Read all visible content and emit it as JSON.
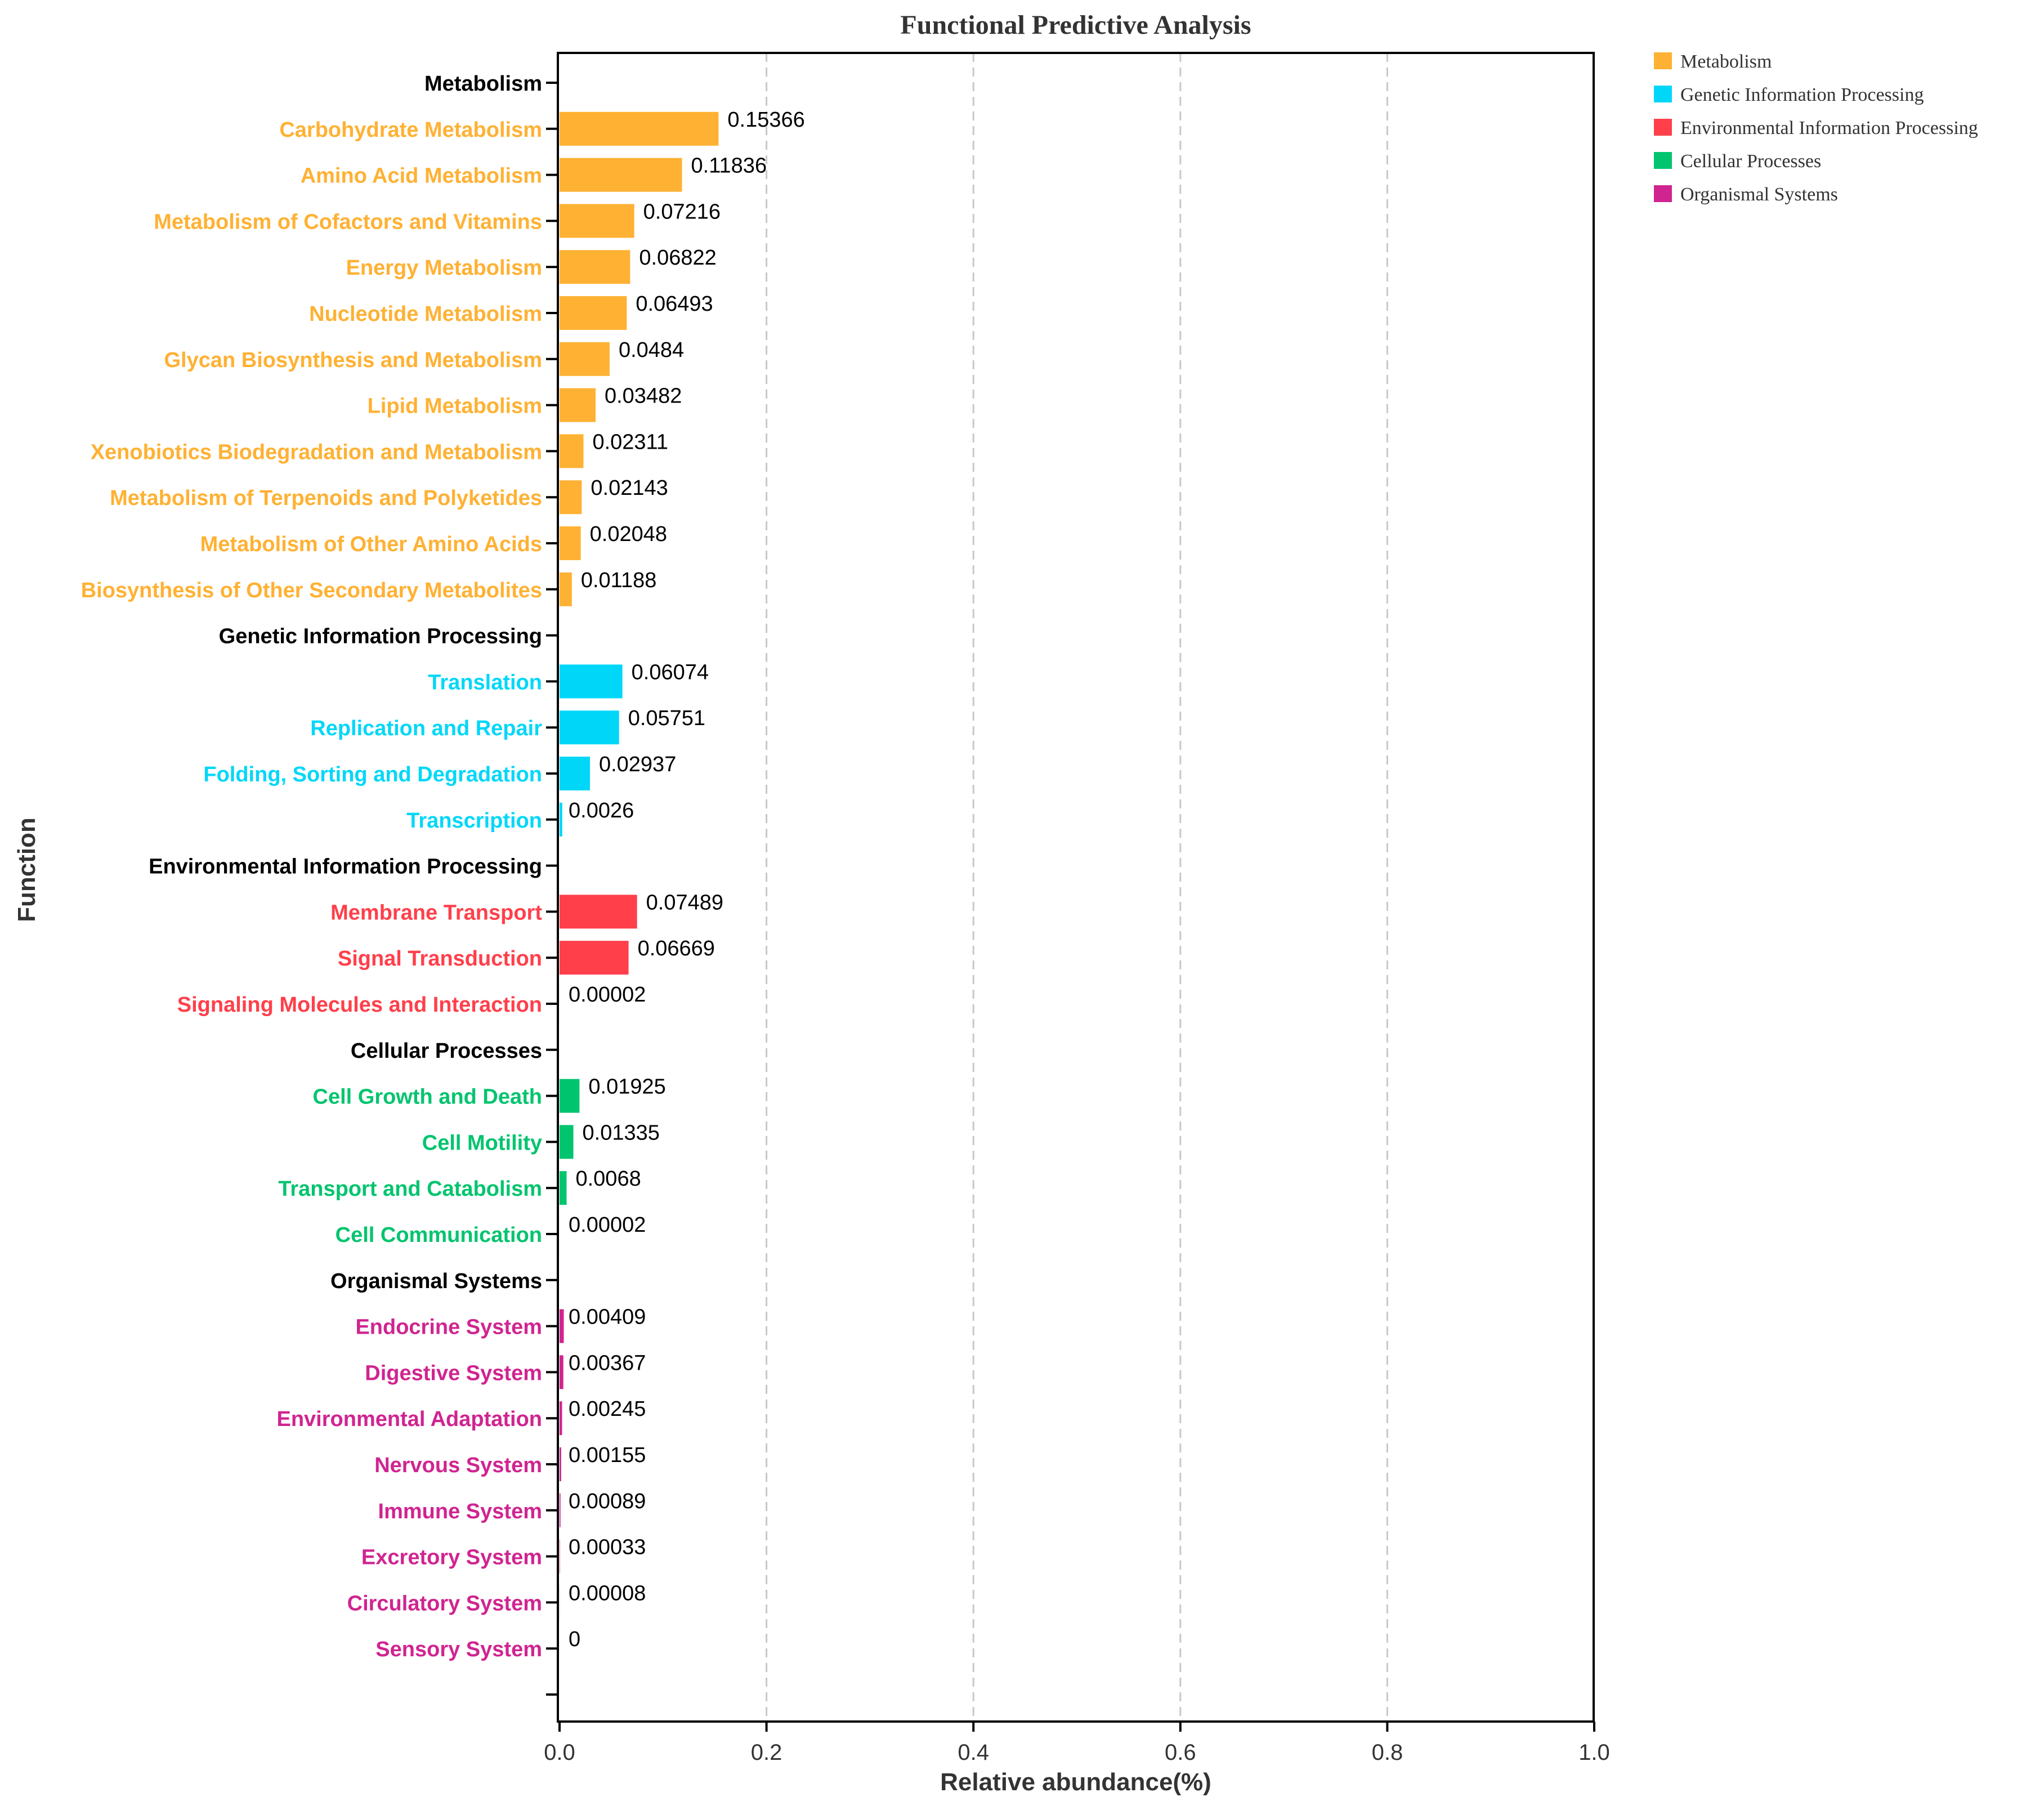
{
  "chart_data": {
    "type": "bar",
    "orientation": "horizontal",
    "title": "Functional Predictive Analysis",
    "xlabel": "Relative abundance(%)",
    "ylabel": "Function",
    "xlim": [
      0,
      1.0
    ],
    "x_ticks": [
      "0.0",
      "0.2",
      "0.4",
      "0.6",
      "0.8",
      "1.0"
    ],
    "x_tick_values": [
      0,
      0.2,
      0.4,
      0.6,
      0.8,
      1.0
    ],
    "grid": "vertical dashed",
    "legend_position": "top-right outside",
    "categories": [
      {
        "name": "Metabolism",
        "color": "#FFB133"
      },
      {
        "name": "Genetic Information Processing",
        "color": "#00D7F8"
      },
      {
        "name": "Environmental Information Processing",
        "color": "#FF3F4A"
      },
      {
        "name": "Cellular Processes",
        "color": "#00C46E"
      },
      {
        "name": "Organismal Systems",
        "color": "#D02490"
      }
    ],
    "rows": [
      {
        "label": "Metabolism",
        "header": true,
        "group": 0
      },
      {
        "label": "Carbohydrate Metabolism",
        "group": 0,
        "value": 0.15366,
        "value_label": "0.15366"
      },
      {
        "label": "Amino Acid Metabolism",
        "group": 0,
        "value": 0.11836,
        "value_label": "0.11836"
      },
      {
        "label": "Metabolism of Cofactors and Vitamins",
        "group": 0,
        "value": 0.07216,
        "value_label": "0.07216"
      },
      {
        "label": "Energy Metabolism",
        "group": 0,
        "value": 0.06822,
        "value_label": "0.06822"
      },
      {
        "label": "Nucleotide Metabolism",
        "group": 0,
        "value": 0.06493,
        "value_label": "0.06493"
      },
      {
        "label": "Glycan Biosynthesis and Metabolism",
        "group": 0,
        "value": 0.0484,
        "value_label": "0.0484"
      },
      {
        "label": "Lipid Metabolism",
        "group": 0,
        "value": 0.03482,
        "value_label": "0.03482"
      },
      {
        "label": "Xenobiotics Biodegradation and Metabolism",
        "group": 0,
        "value": 0.02311,
        "value_label": "0.02311"
      },
      {
        "label": "Metabolism of Terpenoids and Polyketides",
        "group": 0,
        "value": 0.02143,
        "value_label": "0.02143"
      },
      {
        "label": "Metabolism of Other Amino Acids",
        "group": 0,
        "value": 0.02048,
        "value_label": "0.02048"
      },
      {
        "label": "Biosynthesis of Other Secondary Metabolites",
        "group": 0,
        "value": 0.01188,
        "value_label": "0.01188"
      },
      {
        "label": "Genetic Information Processing",
        "header": true,
        "group": 1
      },
      {
        "label": "Translation",
        "group": 1,
        "value": 0.06074,
        "value_label": "0.06074"
      },
      {
        "label": "Replication and Repair",
        "group": 1,
        "value": 0.05751,
        "value_label": "0.05751"
      },
      {
        "label": "Folding, Sorting and Degradation",
        "group": 1,
        "value": 0.02937,
        "value_label": "0.02937"
      },
      {
        "label": "Transcription",
        "group": 1,
        "value": 0.0026,
        "value_label": "0.0026"
      },
      {
        "label": "Environmental Information Processing",
        "header": true,
        "group": 2
      },
      {
        "label": "Membrane Transport",
        "group": 2,
        "value": 0.07489,
        "value_label": "0.07489"
      },
      {
        "label": "Signal Transduction",
        "group": 2,
        "value": 0.06669,
        "value_label": "0.06669"
      },
      {
        "label": "Signaling Molecules and Interaction",
        "group": 2,
        "value": 2e-05,
        "value_label": "0.00002"
      },
      {
        "label": "Cellular Processes",
        "header": true,
        "group": 3
      },
      {
        "label": "Cell Growth and Death",
        "group": 3,
        "value": 0.01925,
        "value_label": "0.01925"
      },
      {
        "label": "Cell Motility",
        "group": 3,
        "value": 0.01335,
        "value_label": "0.01335"
      },
      {
        "label": "Transport and Catabolism",
        "group": 3,
        "value": 0.0068,
        "value_label": "0.0068"
      },
      {
        "label": "Cell Communication",
        "group": 3,
        "value": 2e-05,
        "value_label": "0.00002"
      },
      {
        "label": "Organismal Systems",
        "header": true,
        "group": 4
      },
      {
        "label": "Endocrine System",
        "group": 4,
        "value": 0.00409,
        "value_label": "0.00409"
      },
      {
        "label": "Digestive System",
        "group": 4,
        "value": 0.00367,
        "value_label": "0.00367"
      },
      {
        "label": "Environmental Adaptation",
        "group": 4,
        "value": 0.00245,
        "value_label": "0.00245"
      },
      {
        "label": "Nervous System",
        "group": 4,
        "value": 0.00155,
        "value_label": "0.00155"
      },
      {
        "label": "Immune System",
        "group": 4,
        "value": 0.00089,
        "value_label": "0.00089"
      },
      {
        "label": "Excretory System",
        "group": 4,
        "value": 0.00033,
        "value_label": "0.00033"
      },
      {
        "label": "Circulatory System",
        "group": 4,
        "value": 8e-05,
        "value_label": "0.00008"
      },
      {
        "label": "Sensory System",
        "group": 4,
        "value": 0,
        "value_label": "0"
      }
    ]
  }
}
